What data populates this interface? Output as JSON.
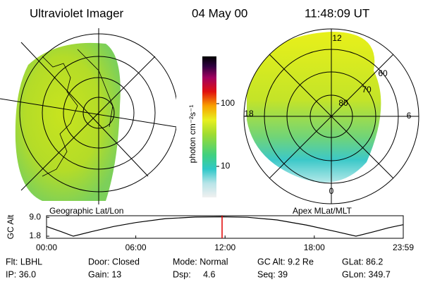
{
  "header": {
    "title": "Ultraviolet Imager",
    "date": "04 May 00",
    "time": "11:48:09 UT"
  },
  "maps": {
    "left_label": "Geographic Lat/Lon",
    "right_label": "Apex MLat/MLT",
    "mlt_labels": [
      "12",
      "6",
      "0",
      "18"
    ],
    "lat_labels": [
      "60",
      "70",
      "80"
    ]
  },
  "chart_data": [
    {
      "type": "line",
      "ylabel": "GC Alt",
      "x": [
        0,
        1,
        1.8,
        3,
        4.5,
        6,
        8,
        10,
        11.8,
        13.5,
        15.5,
        17.5,
        19.5,
        20.8,
        22,
        23,
        23.98
      ],
      "series": [
        {
          "color": "#000000",
          "values": [
            5.5,
            3.5,
            1.8,
            3.5,
            5.5,
            7.0,
            8.5,
            9.1,
            9.2,
            9.0,
            8.0,
            6.0,
            3.5,
            1.8,
            3.5,
            5.0,
            6.2
          ]
        }
      ],
      "xlim": [
        0,
        23.98
      ],
      "xticks": [
        {
          "value": 0,
          "label": "00:00"
        },
        {
          "value": 6,
          "label": "06:00"
        },
        {
          "value": 12,
          "label": "12:00"
        },
        {
          "value": 18,
          "label": "18:00"
        },
        {
          "value": 23.98,
          "label": "23:59"
        }
      ],
      "ylim": [
        1.0,
        9.6
      ],
      "yticks": [
        1.8,
        {
          "value": 9,
          "label": "9.0"
        }
      ],
      "marker_x": 11.8,
      "marker_color": "#e00000"
    },
    {
      "type": "colorbar",
      "label": "photon cm⁻²s⁻¹",
      "ylim": [
        3.2,
        566
      ],
      "yticks": [
        10,
        100
      ],
      "log": true
    }
  ],
  "info": [
    [
      "Flt: LBHL",
      "Door: Closed",
      "Mode: Normal",
      "GC Alt: 9.2 Re",
      "GLat: 86.2"
    ],
    [
      "IP: 36.0",
      "Gain: 13",
      "Dsp:     4.6",
      "Seq: 39",
      "GLon: 349.7"
    ]
  ]
}
